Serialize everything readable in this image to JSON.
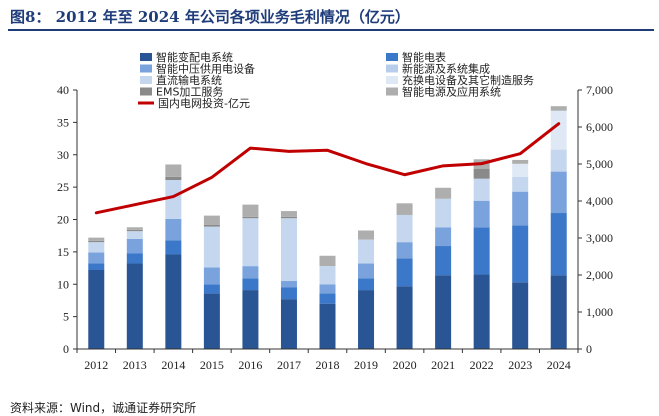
{
  "header": {
    "figure_title": "图8：   2012 年至 2024 年公司各项业务毛利情况（亿元）"
  },
  "footer": {
    "source": "资料来源：Wind，诚通证券研究所"
  },
  "chart_data": {
    "type": "bar",
    "stacked": true,
    "categories": [
      "2012",
      "2013",
      "2014",
      "2015",
      "2016",
      "2017",
      "2018",
      "2019",
      "2020",
      "2021",
      "2022",
      "2023",
      "2024"
    ],
    "ylim": [
      0,
      40
    ],
    "y2lim": [
      0,
      7000
    ],
    "yticks": [
      "0",
      "5",
      "10",
      "15",
      "20",
      "25",
      "30",
      "35",
      "40"
    ],
    "y2ticks": [
      "0",
      "1,000",
      "2,000",
      "3,000",
      "4,000",
      "5,000",
      "6,000",
      "7,000"
    ],
    "legend_position": "top",
    "series": [
      {
        "name": "智能变配电系统",
        "color": "#2a5595",
        "values": [
          12.2,
          13.2,
          14.6,
          8.6,
          9.1,
          7.7,
          7.0,
          9.1,
          9.7,
          11.4,
          11.5,
          10.3,
          11.4
        ]
      },
      {
        "name": "智能电表",
        "color": "#3b78c9",
        "values": [
          1.0,
          1.6,
          2.2,
          1.4,
          1.8,
          1.8,
          1.6,
          1.8,
          4.3,
          4.5,
          7.3,
          8.8,
          9.6
        ]
      },
      {
        "name": "智能中压供用电设备",
        "color": "#7aa3dd",
        "values": [
          1.7,
          2.2,
          3.3,
          2.6,
          1.9,
          1.0,
          1.4,
          2.3,
          2.5,
          2.9,
          4.1,
          5.2,
          6.4
        ]
      },
      {
        "name": "新能源及系统集成",
        "color": "#b8cdeb",
        "values": [
          0,
          0,
          0,
          0,
          0,
          0,
          0,
          0,
          0,
          0,
          0,
          0,
          0
        ]
      },
      {
        "name": "直流输电系统",
        "color": "#c5d7ee",
        "values": [
          1.6,
          1.2,
          6.0,
          6.3,
          7.4,
          9.7,
          2.8,
          3.7,
          4.2,
          4.4,
          3.4,
          2.3,
          3.4
        ]
      },
      {
        "name": "充换电设备及其它制造服务",
        "color": "#dfe9f6",
        "values": [
          0,
          0,
          0,
          0,
          0,
          0,
          0,
          0,
          0,
          0,
          0,
          2.0,
          6.0
        ]
      },
      {
        "name": "EMS加工服务",
        "color": "#8a8a8a",
        "values": [
          0.2,
          0.2,
          0.5,
          0.3,
          0.2,
          0.2,
          0,
          0,
          0,
          0,
          1.5,
          0,
          0
        ]
      },
      {
        "name": "智能电源及应用系统",
        "color": "#aeaeae",
        "values": [
          0.5,
          0.4,
          1.9,
          1.4,
          1.9,
          0.9,
          1.6,
          1.4,
          1.8,
          1.7,
          1.5,
          0.6,
          0.7
        ]
      }
    ],
    "line_series": {
      "name": "国内电网投资-亿元",
      "color": "#c00000",
      "axis": "right",
      "values": [
        3680,
        3900,
        4120,
        4640,
        5430,
        5340,
        5370,
        5010,
        4710,
        4950,
        5010,
        5280,
        6090
      ]
    }
  }
}
